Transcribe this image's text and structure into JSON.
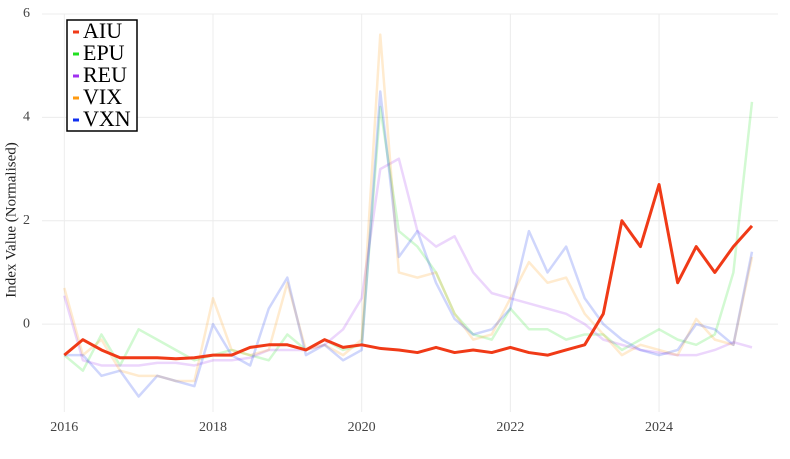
{
  "chart_data": {
    "type": "line",
    "ylabel": "Index Value (Normalised)",
    "x": [
      2016,
      2016.25,
      2016.5,
      2016.75,
      2017,
      2017.25,
      2017.5,
      2017.75,
      2018,
      2018.25,
      2018.5,
      2018.75,
      2019,
      2019.25,
      2019.5,
      2019.75,
      2020,
      2020.25,
      2020.5,
      2020.75,
      2021,
      2021.25,
      2021.5,
      2021.75,
      2022,
      2022.25,
      2022.5,
      2022.75,
      2023,
      2023.25,
      2023.5,
      2023.75,
      2024,
      2024.25,
      2024.5,
      2024.75,
      2025,
      2025.25
    ],
    "series": [
      {
        "name": "EPU",
        "color": "#20e020",
        "alpha": 0.2,
        "values": [
          -0.6,
          -0.9,
          -0.2,
          -0.8,
          -0.1,
          -0.3,
          -0.5,
          -0.7,
          -0.6,
          -0.5,
          -0.6,
          -0.7,
          -0.2,
          -0.5,
          -0.3,
          -0.5,
          -0.4,
          4.2,
          1.8,
          1.5,
          1.0,
          0.2,
          -0.2,
          -0.3,
          0.3,
          -0.1,
          -0.1,
          -0.3,
          -0.2,
          -0.2,
          -0.5,
          -0.3,
          -0.1,
          -0.3,
          -0.4,
          -0.2,
          1.0,
          4.3
        ]
      },
      {
        "name": "REU",
        "color": "#a030f0",
        "alpha": 0.2,
        "values": [
          0.55,
          -0.7,
          -0.8,
          -0.8,
          -0.8,
          -0.75,
          -0.75,
          -0.8,
          -0.7,
          -0.7,
          -0.65,
          -0.5,
          -0.5,
          -0.5,
          -0.4,
          -0.1,
          0.5,
          3.0,
          3.2,
          1.8,
          1.5,
          1.7,
          1.0,
          0.6,
          0.5,
          0.4,
          0.3,
          0.2,
          0.0,
          -0.3,
          -0.4,
          -0.5,
          -0.55,
          -0.6,
          -0.6,
          -0.5,
          -0.35,
          -0.45
        ]
      },
      {
        "name": "VIX",
        "color": "#ff9a10",
        "alpha": 0.2,
        "values": [
          0.7,
          -0.6,
          -0.3,
          -0.9,
          -1.0,
          -1.0,
          -1.1,
          -1.1,
          0.5,
          -0.5,
          -0.6,
          -0.5,
          0.8,
          -0.5,
          -0.4,
          -0.6,
          -0.3,
          5.6,
          1.0,
          0.9,
          1.0,
          0.2,
          -0.3,
          -0.2,
          0.5,
          1.2,
          0.8,
          0.9,
          0.2,
          -0.2,
          -0.6,
          -0.4,
          -0.5,
          -0.6,
          0.1,
          -0.3,
          -0.4,
          1.3
        ]
      },
      {
        "name": "VXN",
        "color": "#1030f0",
        "alpha": 0.2,
        "values": [
          -0.6,
          -0.6,
          -1.0,
          -0.9,
          -1.4,
          -1.0,
          -1.1,
          -1.2,
          0.0,
          -0.6,
          -0.8,
          0.3,
          0.9,
          -0.6,
          -0.4,
          -0.7,
          -0.5,
          4.5,
          1.3,
          1.8,
          0.8,
          0.1,
          -0.2,
          -0.1,
          0.3,
          1.8,
          1.0,
          1.5,
          0.5,
          0.0,
          -0.3,
          -0.5,
          -0.6,
          -0.5,
          0.0,
          -0.1,
          -0.4,
          1.4
        ]
      },
      {
        "name": "AIU",
        "color": "#f03a17",
        "alpha": 1,
        "values": [
          -0.6,
          -0.3,
          -0.5,
          -0.65,
          -0.65,
          -0.65,
          -0.67,
          -0.65,
          -0.6,
          -0.6,
          -0.45,
          -0.4,
          -0.4,
          -0.5,
          -0.3,
          -0.45,
          -0.4,
          -0.47,
          -0.5,
          -0.55,
          -0.45,
          -0.55,
          -0.5,
          -0.55,
          -0.45,
          -0.55,
          -0.6,
          -0.5,
          -0.4,
          0.2,
          2.0,
          1.5,
          2.7,
          0.8,
          1.5,
          1.0,
          1.5,
          1.9
        ]
      }
    ],
    "legend_order": [
      "AIU",
      "EPU",
      "REU",
      "VIX",
      "VXN"
    ],
    "xlim": [
      2015.7,
      2025.6
    ],
    "xticks": [
      2016,
      2018,
      2020,
      2022,
      2024
    ],
    "ylim": [
      -1.7,
      6
    ],
    "yticks": [
      0,
      2,
      4,
      6
    ],
    "grid": true,
    "legend": "top-left"
  }
}
